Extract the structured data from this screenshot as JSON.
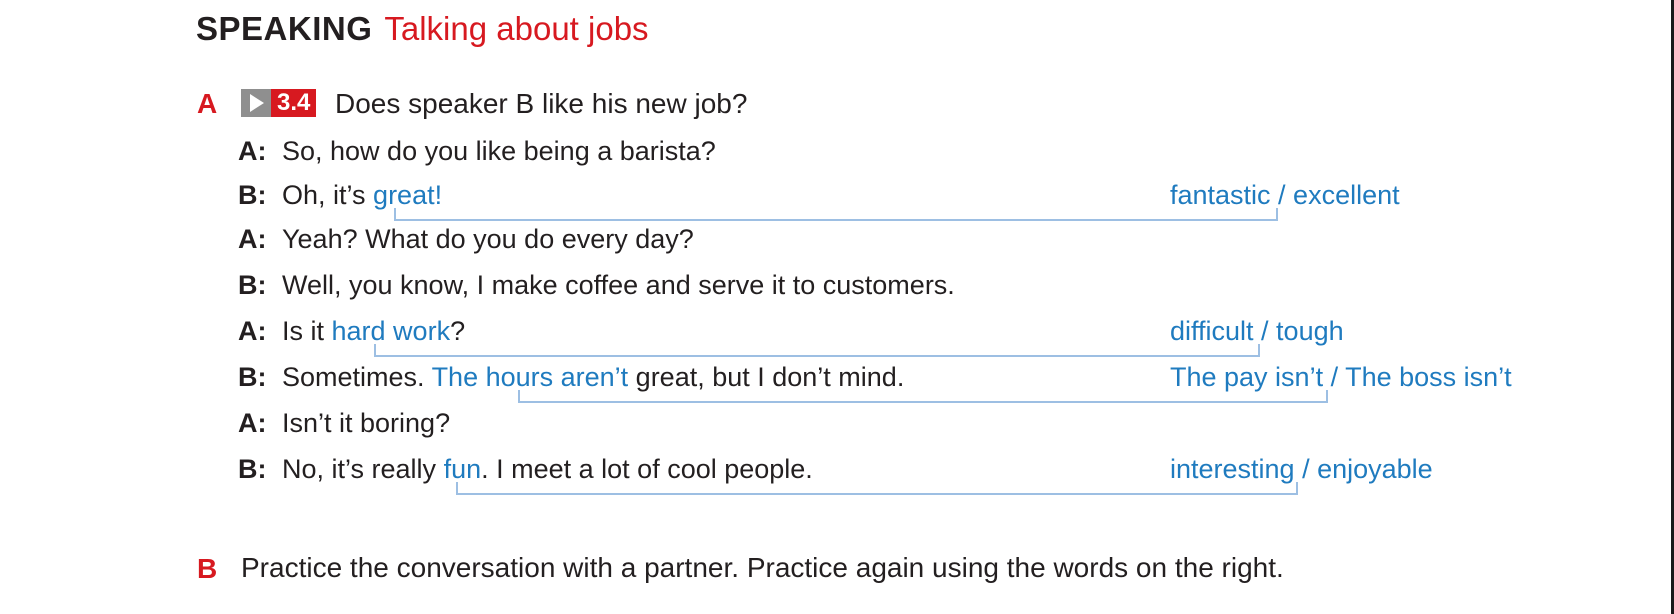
{
  "header": {
    "title": "SPEAKING",
    "subtitle": "Talking about jobs"
  },
  "part_a": {
    "letter": "A",
    "play_icon": "play-icon",
    "track": "3.4",
    "question": "Does speaker B like his new job?"
  },
  "conversation": [
    {
      "speaker": "A:",
      "pre": "So, how do you like being a barista?",
      "hl": "",
      "post": "",
      "alt": ""
    },
    {
      "speaker": "B:",
      "pre": "Oh, it’s ",
      "hl": "great!",
      "post": "",
      "alt": "fantastic / excellent"
    },
    {
      "speaker": "A:",
      "pre": "Yeah? What do you do every day?",
      "hl": "",
      "post": "",
      "alt": ""
    },
    {
      "speaker": "B:",
      "pre": "Well, you know, I make coffee and serve it to customers.",
      "hl": "",
      "post": "",
      "alt": ""
    },
    {
      "speaker": "A:",
      "pre": "Is it ",
      "hl": "hard work",
      "post": "?",
      "alt": "difficult / tough"
    },
    {
      "speaker": "B:",
      "pre": "Sometimes. ",
      "hl": "The hours aren’t",
      "post": " great, but I don’t mind.",
      "alt": "The pay isn’t / The boss isn’t"
    },
    {
      "speaker": "A:",
      "pre": "Isn’t it boring?",
      "hl": "",
      "post": "",
      "alt": ""
    },
    {
      "speaker": "B:",
      "pre": "No, it’s really ",
      "hl": "fun",
      "post": ". I meet a lot of cool people.",
      "alt": "interesting / enjoyable"
    }
  ],
  "part_b": {
    "letter": "B",
    "instruction": "Practice the conversation with a partner. Practice again using the words on the right."
  },
  "colors": {
    "accent_red": "#d71920",
    "highlight_blue": "#1f7bbf",
    "bracket_blue": "#9dbfe3"
  }
}
